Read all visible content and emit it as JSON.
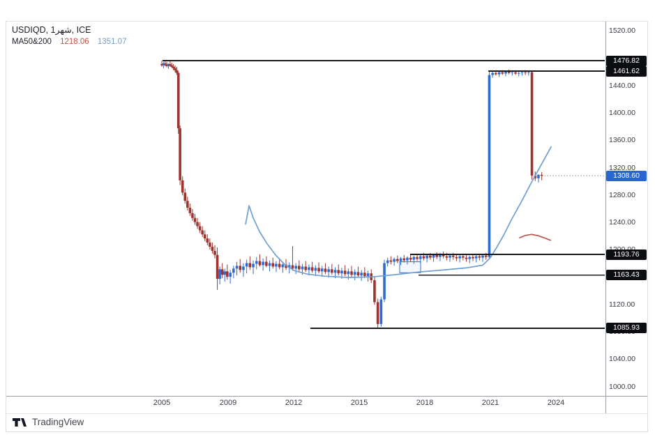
{
  "legend": {
    "symbol": "USDIQD",
    "interval": "1شهر",
    "exchange": "ICE",
    "sep": ", ",
    "indicator_label": "MA50&200",
    "ma50_value": "1218.06",
    "ma200_value": "1351.07"
  },
  "attribution": {
    "brand": "TradingView"
  },
  "colors": {
    "up": "#2e6bd3",
    "down": "#9e3430",
    "ma50": "#bf544a",
    "ma200": "#6f9fd4",
    "level_line": "#16181c",
    "badge_black_bg": "#0c0d10",
    "badge_black_text": "#ffffff",
    "badge_last_bg": "#2767cf",
    "badge_last_text": "#ffffff",
    "box_stroke": "#2e6bd3"
  },
  "chart_data": {
    "type": "candlestick",
    "title": "USDIQD, 1شهر, ICE",
    "grid": false,
    "legend_position": "top-left",
    "ylim": [
      988,
      1534
    ],
    "x_anchors": [
      [
        2005,
        232
      ],
      [
        2009,
        327
      ],
      [
        2024,
        797
      ]
    ],
    "y_ticks": [
      1520,
      1480,
      1440,
      1400,
      1360,
      1320,
      1280,
      1240,
      1200,
      1160,
      1120,
      1080,
      1040,
      1000
    ],
    "x_ticks": [
      {
        "label": "2005",
        "t": 2005
      },
      {
        "label": "2009",
        "t": 2009
      },
      {
        "label": "2012",
        "t": 2012
      },
      {
        "label": "2015",
        "t": 2015
      },
      {
        "label": "2018",
        "t": 2018
      },
      {
        "label": "2021",
        "t": 2021
      },
      {
        "label": "2024",
        "t": 2024
      }
    ],
    "levels": [
      {
        "price": 1476.82,
        "from_t": 2005.05
      },
      {
        "price": 1461.62,
        "from_t": 2020.9
      },
      {
        "price": 1193.76,
        "from_t": 2017.33
      },
      {
        "price": 1163.43,
        "from_t": 2017.71
      },
      {
        "price": 1085.93,
        "from_t": 2012.77
      }
    ],
    "last_price": 1308.6,
    "box": {
      "t1": 2016.85,
      "t2": 2017.81,
      "p1": 1167,
      "p2": 1183
    },
    "ma200_points": [
      [
        2009.8,
        1238
      ],
      [
        2009.96,
        1265
      ],
      [
        2010.15,
        1247
      ],
      [
        2010.44,
        1227
      ],
      [
        2010.79,
        1209
      ],
      [
        2011.17,
        1193
      ],
      [
        2011.59,
        1179
      ],
      [
        2012.03,
        1170
      ],
      [
        2012.61,
        1165
      ],
      [
        2013.4,
        1162
      ],
      [
        2014.52,
        1160
      ],
      [
        2015.64,
        1161
      ],
      [
        2016.6,
        1164
      ],
      [
        2017.71,
        1168
      ],
      [
        2018.83,
        1171
      ],
      [
        2019.88,
        1174
      ],
      [
        2020.65,
        1178
      ],
      [
        2021.0,
        1189
      ],
      [
        2021.29,
        1204
      ],
      [
        2021.61,
        1222
      ],
      [
        2021.99,
        1246
      ],
      [
        2022.44,
        1272
      ],
      [
        2022.88,
        1299
      ],
      [
        2023.33,
        1325
      ],
      [
        2023.78,
        1351.07
      ]
    ],
    "ma50_points": [
      [
        2022.34,
        1218
      ],
      [
        2022.6,
        1221.5
      ],
      [
        2022.88,
        1223
      ],
      [
        2023.2,
        1221
      ],
      [
        2023.5,
        1217.5
      ],
      [
        2023.75,
        1214.5
      ]
    ],
    "candles": [
      [
        2005.0,
        1472,
        1477,
        1468,
        1470
      ],
      [
        2005.1,
        1470,
        1475,
        1466,
        1473
      ],
      [
        2005.2,
        1473,
        1476.8,
        1469,
        1471
      ],
      [
        2005.3,
        1471,
        1475,
        1467,
        1469
      ],
      [
        2005.4,
        1469,
        1473,
        1465,
        1472
      ],
      [
        2005.5,
        1472,
        1476,
        1468,
        1470
      ],
      [
        2005.6,
        1470,
        1474,
        1466,
        1468
      ],
      [
        2005.7,
        1468,
        1472,
        1463,
        1466
      ],
      [
        2005.8,
        1466,
        1470,
        1460,
        1463
      ],
      [
        2005.9,
        1463,
        1468,
        1456,
        1459
      ],
      [
        2006.0,
        1459,
        1462,
        1370,
        1378
      ],
      [
        2006.1,
        1378,
        1382,
        1295,
        1302
      ],
      [
        2006.25,
        1302,
        1308,
        1280,
        1284
      ],
      [
        2006.4,
        1284,
        1290,
        1268,
        1272
      ],
      [
        2006.55,
        1272,
        1278,
        1258,
        1262
      ],
      [
        2006.7,
        1262,
        1268,
        1250,
        1254
      ],
      [
        2006.85,
        1254,
        1260,
        1243,
        1247
      ],
      [
        2007.0,
        1247,
        1253,
        1237,
        1241
      ],
      [
        2007.15,
        1241,
        1247,
        1231,
        1235
      ],
      [
        2007.3,
        1235,
        1241,
        1225,
        1229
      ],
      [
        2007.45,
        1229,
        1235,
        1219,
        1223
      ],
      [
        2007.6,
        1223,
        1229,
        1213,
        1217
      ],
      [
        2007.75,
        1217,
        1223,
        1207,
        1211
      ],
      [
        2007.9,
        1211,
        1217,
        1201,
        1205
      ],
      [
        2008.05,
        1205,
        1211,
        1195,
        1199
      ],
      [
        2008.2,
        1199,
        1207,
        1188,
        1193
      ],
      [
        2008.35,
        1193,
        1204,
        1142,
        1158
      ],
      [
        2008.5,
        1158,
        1176,
        1150,
        1172
      ],
      [
        2008.65,
        1172,
        1181,
        1159,
        1164
      ],
      [
        2008.8,
        1164,
        1173,
        1154,
        1169
      ],
      [
        2008.95,
        1169,
        1179,
        1157,
        1161
      ],
      [
        2009.1,
        1161,
        1171,
        1151,
        1167
      ],
      [
        2009.25,
        1167,
        1177,
        1159,
        1173
      ],
      [
        2009.4,
        1173,
        1183,
        1163,
        1177
      ],
      [
        2009.55,
        1177,
        1187,
        1167,
        1171
      ],
      [
        2009.7,
        1171,
        1181,
        1161,
        1176
      ],
      [
        2009.85,
        1176,
        1186,
        1166,
        1181
      ],
      [
        2010.0,
        1181,
        1191,
        1171,
        1175
      ],
      [
        2010.15,
        1175,
        1185,
        1165,
        1180
      ],
      [
        2010.3,
        1180,
        1190,
        1172,
        1184
      ],
      [
        2010.45,
        1184,
        1194,
        1176,
        1178
      ],
      [
        2010.6,
        1178,
        1188,
        1170,
        1183
      ],
      [
        2010.75,
        1183,
        1191,
        1175,
        1177
      ],
      [
        2010.9,
        1177,
        1185,
        1169,
        1181
      ],
      [
        2011.05,
        1181,
        1189,
        1173,
        1176
      ],
      [
        2011.2,
        1176,
        1184,
        1168,
        1180
      ],
      [
        2011.35,
        1180,
        1188,
        1172,
        1175
      ],
      [
        2011.5,
        1175,
        1183,
        1167,
        1179
      ],
      [
        2011.65,
        1179,
        1187,
        1171,
        1174
      ],
      [
        2011.8,
        1174,
        1182,
        1166,
        1178
      ],
      [
        2011.95,
        1178,
        1206,
        1170,
        1173
      ],
      [
        2012.1,
        1173,
        1181,
        1165,
        1177
      ],
      [
        2012.25,
        1177,
        1185,
        1169,
        1172
      ],
      [
        2012.4,
        1172,
        1180,
        1164,
        1176
      ],
      [
        2012.55,
        1176,
        1184,
        1168,
        1171
      ],
      [
        2012.7,
        1171,
        1179,
        1163,
        1175
      ],
      [
        2012.85,
        1175,
        1183,
        1167,
        1170
      ],
      [
        2013.0,
        1170,
        1178,
        1162,
        1174
      ],
      [
        2013.15,
        1174,
        1182,
        1166,
        1169
      ],
      [
        2013.3,
        1169,
        1177,
        1161,
        1173
      ],
      [
        2013.45,
        1173,
        1181,
        1165,
        1168
      ],
      [
        2013.6,
        1168,
        1176,
        1160,
        1172
      ],
      [
        2013.75,
        1172,
        1180,
        1164,
        1167
      ],
      [
        2013.9,
        1167,
        1175,
        1159,
        1171
      ],
      [
        2014.05,
        1171,
        1179,
        1163,
        1166
      ],
      [
        2014.2,
        1166,
        1174,
        1158,
        1170
      ],
      [
        2014.35,
        1170,
        1178,
        1162,
        1165
      ],
      [
        2014.5,
        1165,
        1173,
        1157,
        1169
      ],
      [
        2014.65,
        1169,
        1177,
        1161,
        1164
      ],
      [
        2014.8,
        1164,
        1172,
        1156,
        1168
      ],
      [
        2014.95,
        1168,
        1176,
        1160,
        1163
      ],
      [
        2015.1,
        1163,
        1171,
        1155,
        1167
      ],
      [
        2015.25,
        1167,
        1175,
        1159,
        1162
      ],
      [
        2015.4,
        1162,
        1170,
        1154,
        1166
      ],
      [
        2015.55,
        1166,
        1172,
        1152,
        1156
      ],
      [
        2015.7,
        1156,
        1161,
        1120,
        1124
      ],
      [
        2015.85,
        1124,
        1129,
        1085.93,
        1092
      ],
      [
        2016.0,
        1092,
        1132,
        1088,
        1128
      ],
      [
        2016.15,
        1128,
        1186,
        1124,
        1181
      ],
      [
        2016.3,
        1181,
        1189,
        1176,
        1185
      ],
      [
        2016.45,
        1185,
        1191,
        1179,
        1183
      ],
      [
        2016.6,
        1183,
        1189,
        1177,
        1187
      ],
      [
        2016.75,
        1187,
        1192,
        1181,
        1184
      ],
      [
        2016.9,
        1184,
        1190,
        1178,
        1188
      ],
      [
        2017.05,
        1188,
        1193,
        1182,
        1185
      ],
      [
        2017.2,
        1185,
        1191,
        1179,
        1189
      ],
      [
        2017.35,
        1189,
        1194,
        1183,
        1186
      ],
      [
        2017.5,
        1186,
        1192,
        1180,
        1190
      ],
      [
        2017.65,
        1190,
        1195,
        1184,
        1187
      ],
      [
        2017.8,
        1187,
        1193,
        1181,
        1191
      ],
      [
        2017.95,
        1191,
        1196,
        1185,
        1188
      ],
      [
        2018.1,
        1188,
        1194,
        1182,
        1192
      ],
      [
        2018.25,
        1192,
        1196,
        1186,
        1189
      ],
      [
        2018.4,
        1189,
        1195,
        1183,
        1193
      ],
      [
        2018.55,
        1193,
        1197,
        1187,
        1190
      ],
      [
        2018.7,
        1190,
        1196,
        1184,
        1194
      ],
      [
        2018.85,
        1194,
        1198,
        1188,
        1191
      ],
      [
        2019.0,
        1191,
        1196,
        1185,
        1189
      ],
      [
        2019.15,
        1189,
        1194,
        1183,
        1192
      ],
      [
        2019.3,
        1192,
        1196,
        1186,
        1190
      ],
      [
        2019.45,
        1190,
        1194,
        1184,
        1188
      ],
      [
        2019.6,
        1188,
        1193,
        1182,
        1191
      ],
      [
        2019.75,
        1191,
        1195,
        1185,
        1189
      ],
      [
        2019.9,
        1189,
        1193,
        1183,
        1187
      ],
      [
        2020.05,
        1187,
        1192,
        1181,
        1190
      ],
      [
        2020.2,
        1190,
        1194,
        1184,
        1188
      ],
      [
        2020.35,
        1188,
        1193,
        1182,
        1191
      ],
      [
        2020.5,
        1191,
        1195,
        1185,
        1189
      ],
      [
        2020.65,
        1189,
        1194,
        1183,
        1192
      ],
      [
        2020.8,
        1192,
        1196,
        1186,
        1190
      ],
      [
        2020.95,
        1190,
        1461.62,
        1188,
        1456
      ],
      [
        2021.1,
        1456,
        1462,
        1452,
        1459
      ],
      [
        2021.25,
        1459,
        1463,
        1455,
        1457
      ],
      [
        2021.4,
        1457,
        1461,
        1453,
        1460
      ],
      [
        2021.55,
        1460,
        1463,
        1456,
        1458
      ],
      [
        2021.7,
        1458,
        1462,
        1454,
        1461
      ],
      [
        2021.85,
        1461,
        1464,
        1457,
        1459
      ],
      [
        2022.0,
        1459,
        1462,
        1455,
        1460
      ],
      [
        2022.15,
        1460,
        1463,
        1456,
        1458
      ],
      [
        2022.3,
        1458,
        1461,
        1454,
        1459
      ],
      [
        2022.45,
        1459,
        1462,
        1455,
        1460
      ],
      [
        2022.6,
        1460,
        1463,
        1456,
        1459
      ],
      [
        2022.75,
        1459,
        1462,
        1455,
        1460
      ],
      [
        2022.9,
        1460,
        1462,
        1303,
        1309
      ],
      [
        2023.05,
        1309,
        1315,
        1301,
        1305
      ],
      [
        2023.2,
        1305,
        1311,
        1299,
        1310
      ],
      [
        2023.35,
        1310,
        1314,
        1302,
        1308.6
      ]
    ]
  }
}
